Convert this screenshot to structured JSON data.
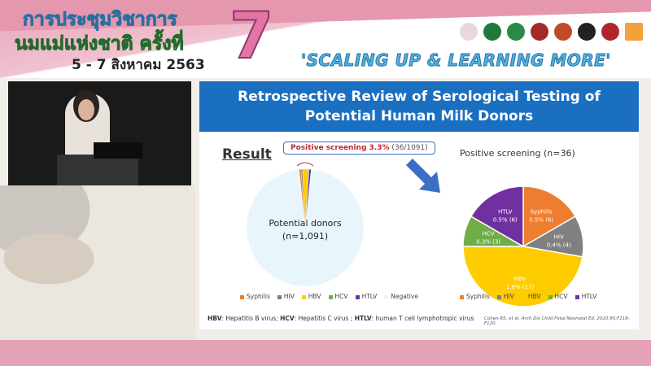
{
  "banner": {
    "thai_line1": "การประชุมวิชาการ",
    "thai_line2": "นมแม่แห่งชาติ ครั้งที่",
    "thai_date": "5 - 7 สิงหาคม 2563",
    "number": "7",
    "slogan": "'SCALING UP & LEARNING MORE'"
  },
  "slide": {
    "title_line1": "Retrospective Review of Serological Testing of",
    "title_line2": "Potential Human Milk Donors",
    "result_label": "Result",
    "positive_callout": {
      "bold": "Positive screening 3.3%",
      "rest": " (36/1091)"
    },
    "left_pie_label_1": "Potential donors",
    "left_pie_label_2": "(n=1,091)",
    "right_title": "Positive screening (n=36)",
    "footnote": [
      {
        "abbr": "HBV",
        "text": ": Hepatitis B virus; "
      },
      {
        "abbr": "HCV",
        "text": ": Hepatitis C virus ; "
      },
      {
        "abbr": "HTLV",
        "text": ": human T cell lymphotropic virus"
      }
    ],
    "citation": "Cohen RS, et al. Arch Dis Child Fetal Neonatal Ed. 2010;95:F118-F120."
  },
  "chart_data": [
    {
      "type": "pie",
      "title": "",
      "total_label": "Potential donors (n=1,091)",
      "categories": [
        "Syphilis",
        "HIV",
        "HBV",
        "HCV",
        "HTLV",
        "Negative"
      ],
      "values": [
        6,
        4,
        17,
        3,
        6,
        1055
      ],
      "colors": [
        "#ed7d31",
        "#808080",
        "#ffcc00",
        "#70ad47",
        "#7030a0",
        "#e8f6fc"
      ],
      "legend": "bottom"
    },
    {
      "type": "pie",
      "title": "Positive screening (n=36)",
      "categories": [
        "Syphilis",
        "HIV",
        "HBV",
        "HCV",
        "HTLV"
      ],
      "values": [
        6,
        4,
        17,
        3,
        6
      ],
      "labels": [
        "0.5% (6)",
        "0.4% (4)",
        "1.6% (17)",
        "0.3% (3)",
        "0.5% (6)"
      ],
      "colors": [
        "#ed7d31",
        "#808080",
        "#ffcc00",
        "#70ad47",
        "#7030a0"
      ],
      "legend": "bottom"
    }
  ]
}
